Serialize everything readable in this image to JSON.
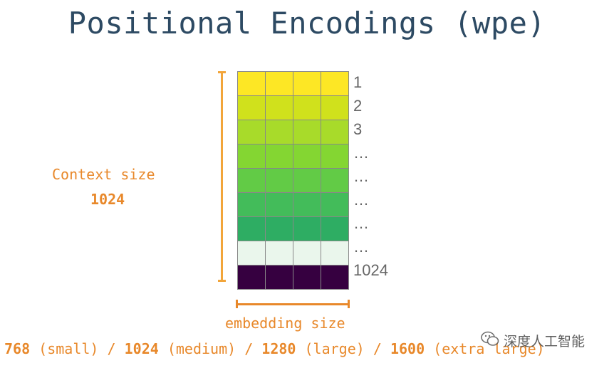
{
  "title": "Positional Encodings (wpe)",
  "context": {
    "label": "Context size",
    "value": "1024"
  },
  "rows": [
    {
      "label": "1",
      "color": "#fde725"
    },
    {
      "label": "2",
      "color": "#d0e11c"
    },
    {
      "label": "3",
      "color": "#a8db2a"
    },
    {
      "label": "…",
      "color": "#84d632"
    },
    {
      "label": "…",
      "color": "#62cb46"
    },
    {
      "label": "…",
      "color": "#43bc5a"
    },
    {
      "label": "…",
      "color": "#2ead63"
    },
    {
      "label": "…",
      "color": "#eaf6ec"
    },
    {
      "label": "1024",
      "color": "#360040"
    }
  ],
  "embedding_label": "embedding size",
  "model_sizes": [
    {
      "value": "768",
      "name": "(small)"
    },
    {
      "value": "1024",
      "name": "(medium)"
    },
    {
      "value": "1280",
      "name": "(large)"
    },
    {
      "value": "1600",
      "name": "(extra large)"
    }
  ],
  "separator": "/",
  "watermark": "深度人工智能",
  "colors": {
    "accent": "#e8882a",
    "title": "#2d4a63",
    "bracket": "#f2a53a"
  }
}
